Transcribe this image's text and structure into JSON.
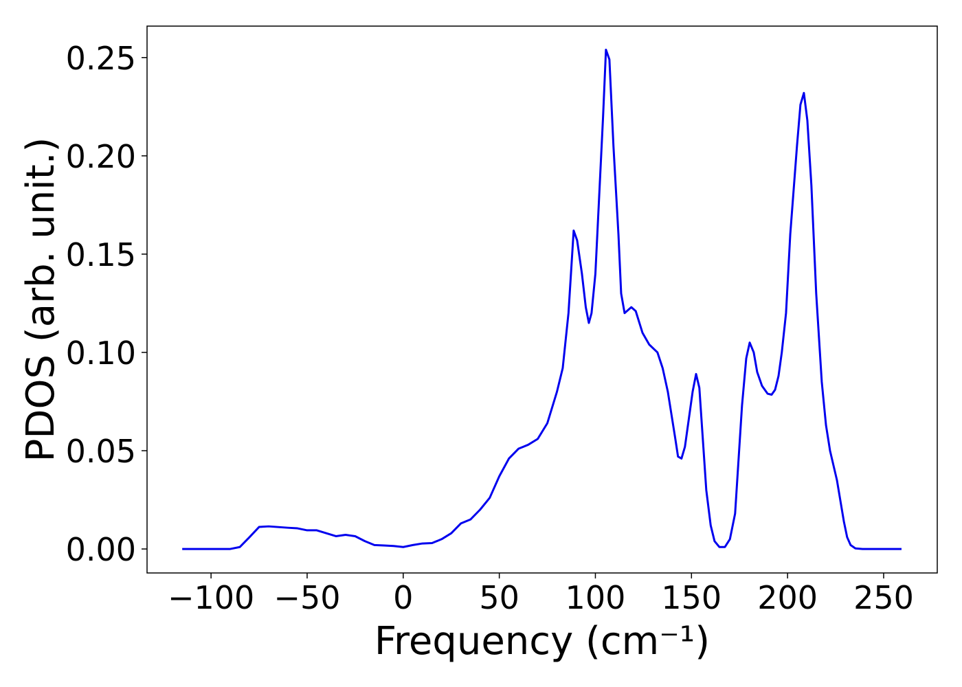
{
  "chart_data": {
    "type": "line",
    "xlabel": "Frequency (cm⁻¹)",
    "ylabel": "PDOS (arb. unit.)",
    "x": [
      -115,
      -90,
      -85,
      -80,
      -75,
      -70,
      -60,
      -55,
      -50,
      -45,
      -40,
      -35,
      -30,
      -25,
      -20,
      -15,
      -10,
      -5,
      0,
      5,
      10,
      15,
      20,
      25,
      30,
      35,
      40,
      45,
      50,
      55,
      60,
      65,
      70,
      75,
      80,
      83,
      86,
      88.7,
      90.5,
      93,
      95,
      96.6,
      98,
      100,
      102,
      104,
      105.5,
      107.3,
      109.4,
      112,
      113.4,
      115.2,
      118.7,
      121,
      124.5,
      128,
      132.3,
      135,
      137.7,
      141.6,
      143,
      144.8,
      146.6,
      150.6,
      152.4,
      154.1,
      157.7,
      160,
      162,
      164.5,
      167.4,
      170,
      172.7,
      176.3,
      178.5,
      180.3,
      182.4,
      184.2,
      186.7,
      189.6,
      191.7,
      193.5,
      195.3,
      197,
      199.2,
      201.4,
      204.9,
      206.7,
      208.5,
      210.3,
      212.4,
      214.9,
      217.8,
      220,
      222.1,
      225.7,
      229.3,
      231,
      232.8,
      235.3,
      239,
      259.3
    ],
    "series": [
      {
        "name": "PDOS",
        "color": "#0000ee",
        "values": [
          0,
          0,
          0.001,
          0.006,
          0.0112,
          0.0115,
          0.0108,
          0.0105,
          0.0095,
          0.0095,
          0.008,
          0.0065,
          0.0072,
          0.0065,
          0.004,
          0.002,
          0.0018,
          0.0015,
          0.001,
          0.002,
          0.0028,
          0.003,
          0.005,
          0.008,
          0.013,
          0.015,
          0.02,
          0.026,
          0.037,
          0.046,
          0.051,
          0.053,
          0.056,
          0.064,
          0.08,
          0.092,
          0.12,
          0.162,
          0.157,
          0.14,
          0.123,
          0.115,
          0.12,
          0.14,
          0.18,
          0.22,
          0.254,
          0.249,
          0.205,
          0.16,
          0.13,
          0.12,
          0.123,
          0.121,
          0.11,
          0.104,
          0.1,
          0.092,
          0.08,
          0.056,
          0.047,
          0.046,
          0.052,
          0.08,
          0.089,
          0.082,
          0.03,
          0.012,
          0.004,
          0.001,
          0.001,
          0.005,
          0.018,
          0.073,
          0.097,
          0.105,
          0.1,
          0.09,
          0.083,
          0.079,
          0.0785,
          0.081,
          0.088,
          0.1,
          0.12,
          0.16,
          0.205,
          0.226,
          0.232,
          0.218,
          0.185,
          0.13,
          0.085,
          0.063,
          0.05,
          0.035,
          0.014,
          0.006,
          0.002,
          0.0003,
          0,
          0
        ]
      }
    ],
    "xlim": [
      -133.3,
      277.9
    ],
    "ylim": [
      -0.0122,
      0.266
    ],
    "xticks": [
      {
        "value": -100,
        "label": "−100"
      },
      {
        "value": -50,
        "label": "−50"
      },
      0,
      50,
      100,
      150,
      200,
      250
    ],
    "yticks": [
      {
        "value": 0,
        "label": "0.00"
      },
      {
        "value": 0.05,
        "label": "0.05"
      },
      {
        "value": 0.1,
        "label": "0.10"
      },
      {
        "value": 0.15,
        "label": "0.15"
      },
      {
        "value": 0.2,
        "label": "0.20"
      },
      {
        "value": 0.25,
        "label": "0.25"
      }
    ],
    "grid": false
  }
}
